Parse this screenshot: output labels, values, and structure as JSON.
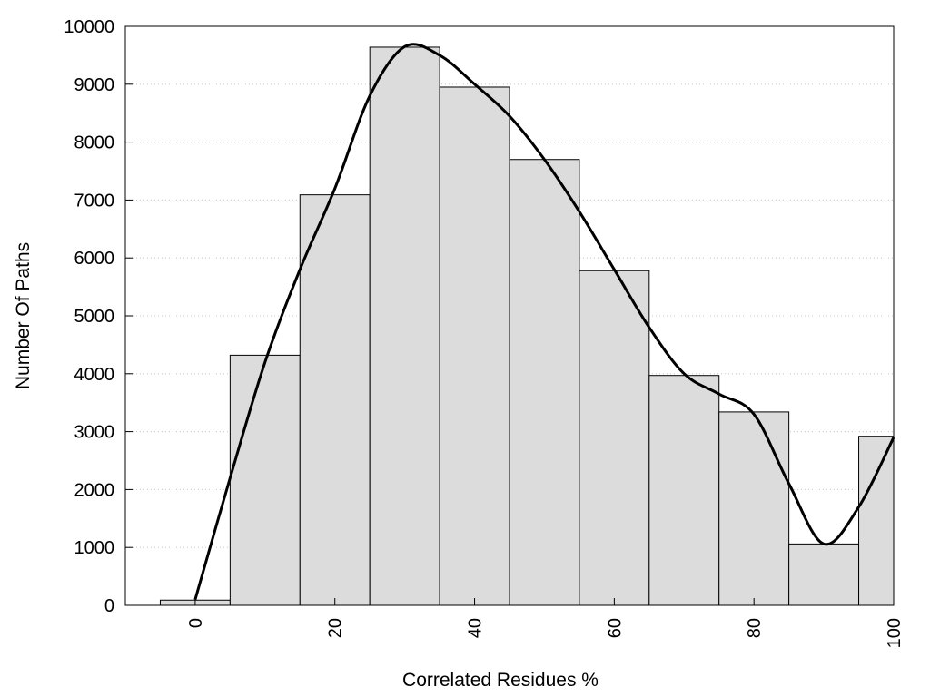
{
  "chart_data": {
    "type": "bar",
    "title": "",
    "xlabel": "Correlated Residues %",
    "ylabel": "Number Of Paths",
    "xlim": [
      -10,
      100
    ],
    "ylim": [
      0,
      10000
    ],
    "bin_width": 10,
    "x_ticks": [
      0,
      20,
      40,
      60,
      80,
      100
    ],
    "y_ticks": [
      0,
      1000,
      2000,
      3000,
      4000,
      5000,
      6000,
      7000,
      8000,
      9000,
      10000
    ],
    "grid": "horizontal dotted",
    "bar_color": "#dcdcdc",
    "bar_edge_color": "#000000",
    "bars": [
      {
        "x": 0,
        "value": 90
      },
      {
        "x": 10,
        "value": 4320
      },
      {
        "x": 20,
        "value": 7090
      },
      {
        "x": 30,
        "value": 9640
      },
      {
        "x": 40,
        "value": 8950
      },
      {
        "x": 50,
        "value": 7700
      },
      {
        "x": 60,
        "value": 5780
      },
      {
        "x": 70,
        "value": 3970
      },
      {
        "x": 80,
        "value": 3340
      },
      {
        "x": 90,
        "value": 1060
      },
      {
        "x": 100,
        "value": 2920
      }
    ],
    "curve": {
      "type": "line",
      "smooth": true,
      "color": "#000000",
      "points": [
        [
          0,
          100
        ],
        [
          5,
          2200
        ],
        [
          10,
          4200
        ],
        [
          15,
          5800
        ],
        [
          20,
          7200
        ],
        [
          25,
          8800
        ],
        [
          30,
          9650
        ],
        [
          35,
          9500
        ],
        [
          40,
          9000
        ],
        [
          45,
          8450
        ],
        [
          50,
          7700
        ],
        [
          55,
          6800
        ],
        [
          60,
          5800
        ],
        [
          65,
          4800
        ],
        [
          70,
          4000
        ],
        [
          75,
          3650
        ],
        [
          80,
          3300
        ],
        [
          85,
          2100
        ],
        [
          90,
          1060
        ],
        [
          95,
          1700
        ],
        [
          100,
          2900
        ]
      ]
    }
  }
}
